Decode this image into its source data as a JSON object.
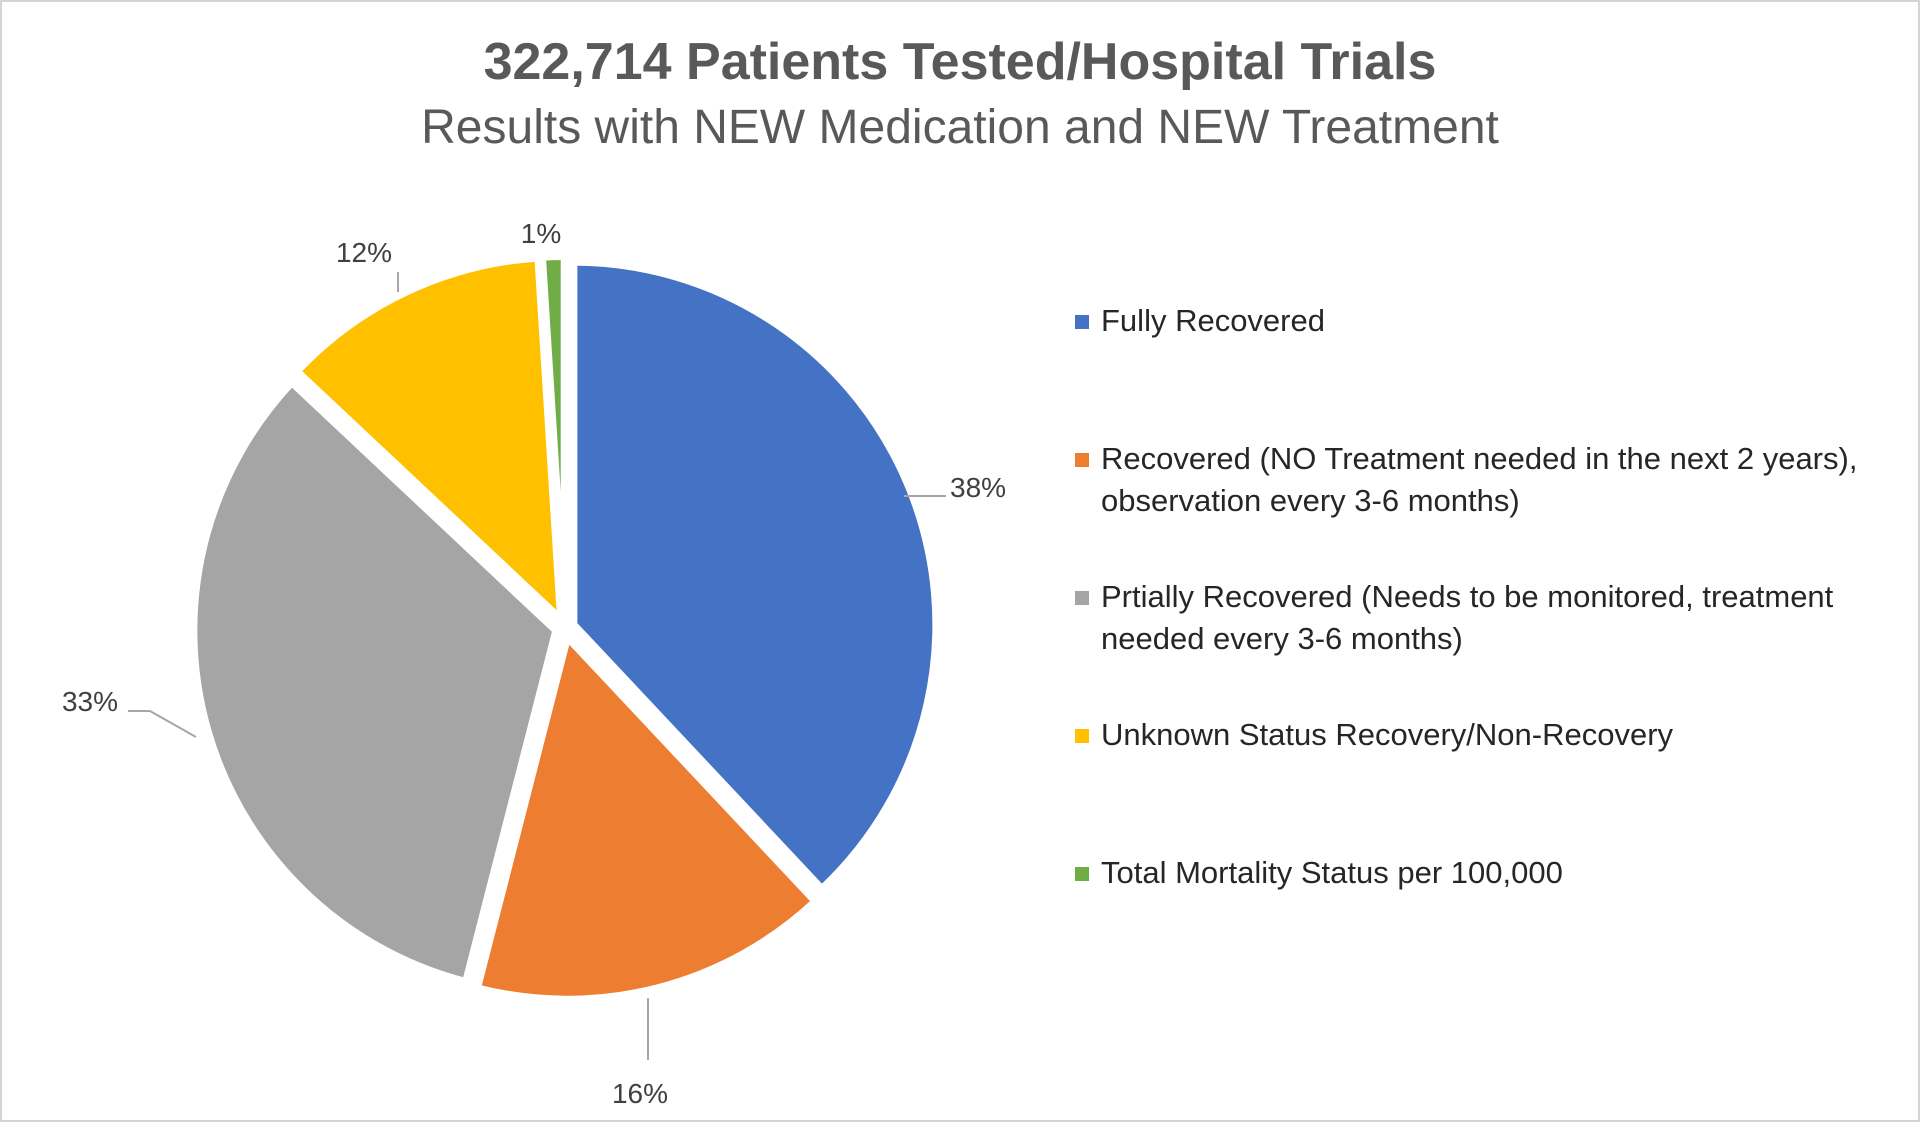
{
  "chart_data": {
    "type": "pie",
    "title": "322,714 Patients Tested/Hospital Trials",
    "subtitle": "Results with NEW Medication and NEW Treatment",
    "legend_position": "right",
    "slices": [
      {
        "label": "Fully Recovered",
        "value": 38,
        "data_label": "38%",
        "color": "#4472C4"
      },
      {
        "label": "Recovered (NO Treatment needed in the next 2 years), observation every 3-6 months)",
        "value": 16,
        "data_label": "16%",
        "color": "#ED7D31"
      },
      {
        "label": "Prtially Recovered (Needs to be monitored, treatment needed every 3-6 months)",
        "value": 33,
        "data_label": "33%",
        "color": "#A5A5A5"
      },
      {
        "label": "Unknown Status Recovery/Non-Recovery",
        "value": 12,
        "data_label": "12%",
        "color": "#FFC000"
      },
      {
        "label": "Total Mortality Status per 100,000",
        "value": 1,
        "data_label": "1%",
        "color": "#70AD47"
      }
    ]
  }
}
